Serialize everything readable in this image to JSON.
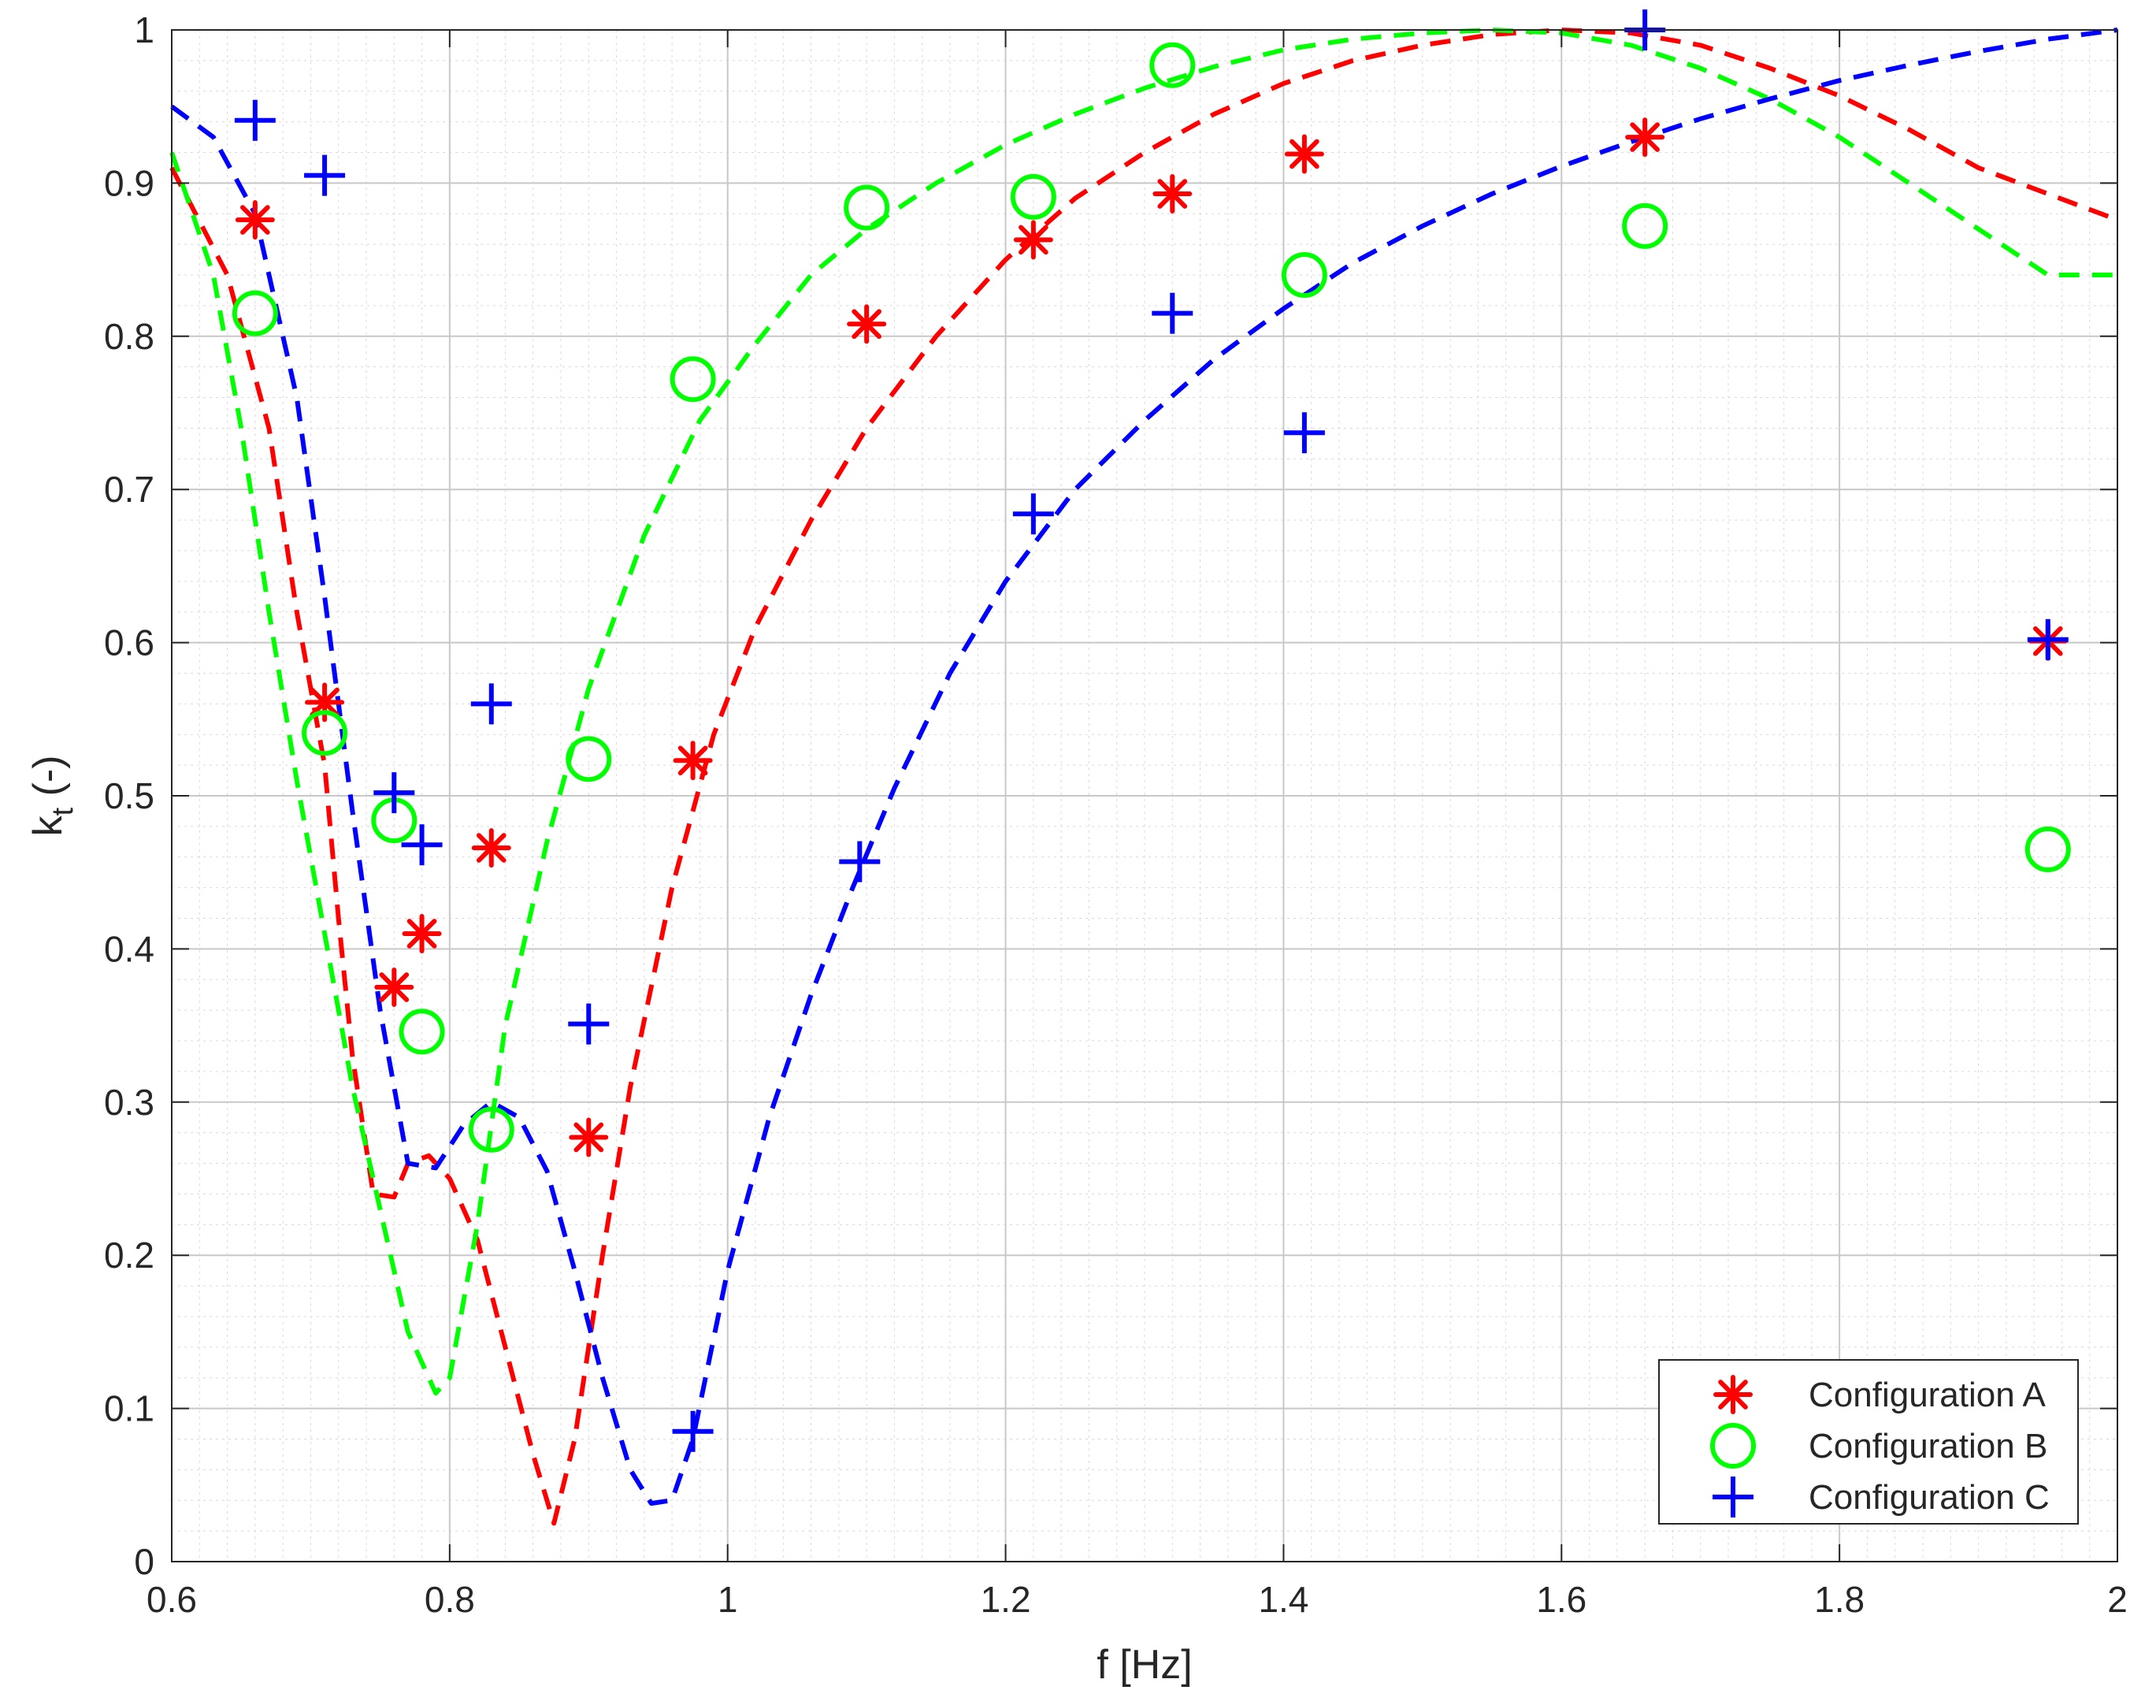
{
  "chart_data": {
    "type": "scatter",
    "title": "",
    "xlabel": "f [Hz]",
    "ylabel_main": "k",
    "ylabel_sub": "t",
    "ylabel_suffix": " (-)",
    "xlim": [
      0.6,
      2.0
    ],
    "ylim": [
      0,
      1
    ],
    "x_ticks": [
      0.6,
      0.8,
      1.0,
      1.2,
      1.4,
      1.6,
      1.8,
      2.0
    ],
    "x_tick_labels": [
      "0.6",
      "0.8",
      "1",
      "1.2",
      "1.4",
      "1.6",
      "1.8",
      "2"
    ],
    "y_ticks": [
      0,
      0.1,
      0.2,
      0.3,
      0.4,
      0.5,
      0.6,
      0.7,
      0.8,
      0.9,
      1.0
    ],
    "y_tick_labels": [
      "0",
      "0.1",
      "0.2",
      "0.3",
      "0.4",
      "0.5",
      "0.6",
      "0.7",
      "0.8",
      "0.9",
      "1"
    ],
    "grid": true,
    "minor_grid": true,
    "legend_position": "bottom-right",
    "series": [
      {
        "name": "Configuration A",
        "color": "#ff0000",
        "marker": "asterisk",
        "points": [
          [
            0.66,
            0.876
          ],
          [
            0.71,
            0.561
          ],
          [
            0.76,
            0.375
          ],
          [
            0.78,
            0.41
          ],
          [
            0.83,
            0.466
          ],
          [
            0.9,
            0.277
          ],
          [
            0.975,
            0.523
          ],
          [
            1.1,
            0.808
          ],
          [
            1.22,
            0.863
          ],
          [
            1.32,
            0.893
          ],
          [
            1.415,
            0.919
          ],
          [
            1.66,
            0.93
          ],
          [
            1.95,
            0.601
          ]
        ],
        "fit": [
          [
            0.6,
            0.91
          ],
          [
            0.64,
            0.84
          ],
          [
            0.67,
            0.74
          ],
          [
            0.69,
            0.62
          ],
          [
            0.71,
            0.52
          ],
          [
            0.72,
            0.42
          ],
          [
            0.73,
            0.33
          ],
          [
            0.745,
            0.24
          ],
          [
            0.76,
            0.238
          ],
          [
            0.77,
            0.26
          ],
          [
            0.785,
            0.265
          ],
          [
            0.8,
            0.25
          ],
          [
            0.82,
            0.21
          ],
          [
            0.84,
            0.14
          ],
          [
            0.86,
            0.07
          ],
          [
            0.875,
            0.025
          ],
          [
            0.89,
            0.08
          ],
          [
            0.91,
            0.2
          ],
          [
            0.93,
            0.31
          ],
          [
            0.96,
            0.44
          ],
          [
            0.99,
            0.54
          ],
          [
            1.02,
            0.61
          ],
          [
            1.06,
            0.68
          ],
          [
            1.1,
            0.74
          ],
          [
            1.15,
            0.8
          ],
          [
            1.2,
            0.85
          ],
          [
            1.25,
            0.89
          ],
          [
            1.3,
            0.92
          ],
          [
            1.35,
            0.945
          ],
          [
            1.4,
            0.965
          ],
          [
            1.45,
            0.98
          ],
          [
            1.5,
            0.99
          ],
          [
            1.55,
            0.997
          ],
          [
            1.6,
            1.0
          ],
          [
            1.65,
            0.998
          ],
          [
            1.7,
            0.99
          ],
          [
            1.75,
            0.975
          ],
          [
            1.8,
            0.957
          ],
          [
            1.85,
            0.935
          ],
          [
            1.9,
            0.91
          ],
          [
            1.95,
            0.893
          ],
          [
            2.0,
            0.876
          ]
        ]
      },
      {
        "name": "Configuration B",
        "color": "#00ff00",
        "marker": "circle",
        "points": [
          [
            0.66,
            0.815
          ],
          [
            0.71,
            0.541
          ],
          [
            0.76,
            0.484
          ],
          [
            0.78,
            0.346
          ],
          [
            0.83,
            0.282
          ],
          [
            0.9,
            0.524
          ],
          [
            0.975,
            0.772
          ],
          [
            1.1,
            0.884
          ],
          [
            1.22,
            0.891
          ],
          [
            1.32,
            0.977
          ],
          [
            1.415,
            0.84
          ],
          [
            1.66,
            0.872
          ],
          [
            1.95,
            0.465
          ]
        ],
        "fit": [
          [
            0.6,
            0.92
          ],
          [
            0.63,
            0.84
          ],
          [
            0.65,
            0.74
          ],
          [
            0.67,
            0.62
          ],
          [
            0.69,
            0.51
          ],
          [
            0.71,
            0.41
          ],
          [
            0.73,
            0.31
          ],
          [
            0.75,
            0.23
          ],
          [
            0.77,
            0.15
          ],
          [
            0.79,
            0.11
          ],
          [
            0.8,
            0.12
          ],
          [
            0.82,
            0.22
          ],
          [
            0.84,
            0.35
          ],
          [
            0.87,
            0.47
          ],
          [
            0.9,
            0.57
          ],
          [
            0.94,
            0.67
          ],
          [
            0.98,
            0.745
          ],
          [
            1.02,
            0.795
          ],
          [
            1.06,
            0.84
          ],
          [
            1.1,
            0.87
          ],
          [
            1.15,
            0.9
          ],
          [
            1.2,
            0.925
          ],
          [
            1.25,
            0.945
          ],
          [
            1.3,
            0.962
          ],
          [
            1.35,
            0.976
          ],
          [
            1.4,
            0.987
          ],
          [
            1.45,
            0.994
          ],
          [
            1.5,
            0.998
          ],
          [
            1.55,
            1.0
          ],
          [
            1.6,
            0.998
          ],
          [
            1.65,
            0.99
          ],
          [
            1.7,
            0.975
          ],
          [
            1.75,
            0.955
          ],
          [
            1.8,
            0.93
          ],
          [
            1.85,
            0.9
          ],
          [
            1.9,
            0.87
          ],
          [
            1.95,
            0.84
          ],
          [
            2.0,
            0.84
          ]
        ]
      },
      {
        "name": "Configuration C",
        "color": "#0000ff",
        "marker": "plus",
        "points": [
          [
            0.66,
            0.941
          ],
          [
            0.71,
            0.905
          ],
          [
            0.76,
            0.502
          ],
          [
            0.78,
            0.468
          ],
          [
            0.83,
            0.56
          ],
          [
            0.9,
            0.351
          ],
          [
            0.975,
            0.085
          ],
          [
            1.095,
            0.457
          ],
          [
            1.22,
            0.684
          ],
          [
            1.32,
            0.815
          ],
          [
            1.415,
            0.737
          ],
          [
            1.66,
            1.0
          ],
          [
            1.95,
            0.602
          ]
        ],
        "fit": [
          [
            0.6,
            0.95
          ],
          [
            0.63,
            0.93
          ],
          [
            0.66,
            0.88
          ],
          [
            0.69,
            0.76
          ],
          [
            0.71,
            0.63
          ],
          [
            0.73,
            0.49
          ],
          [
            0.75,
            0.36
          ],
          [
            0.77,
            0.26
          ],
          [
            0.79,
            0.257
          ],
          [
            0.81,
            0.285
          ],
          [
            0.83,
            0.3
          ],
          [
            0.85,
            0.29
          ],
          [
            0.87,
            0.255
          ],
          [
            0.89,
            0.19
          ],
          [
            0.91,
            0.12
          ],
          [
            0.93,
            0.06
          ],
          [
            0.945,
            0.038
          ],
          [
            0.96,
            0.04
          ],
          [
            0.975,
            0.08
          ],
          [
            1.0,
            0.19
          ],
          [
            1.03,
            0.29
          ],
          [
            1.06,
            0.37
          ],
          [
            1.09,
            0.44
          ],
          [
            1.12,
            0.505
          ],
          [
            1.16,
            0.58
          ],
          [
            1.2,
            0.64
          ],
          [
            1.25,
            0.7
          ],
          [
            1.3,
            0.745
          ],
          [
            1.35,
            0.785
          ],
          [
            1.4,
            0.818
          ],
          [
            1.45,
            0.848
          ],
          [
            1.5,
            0.872
          ],
          [
            1.55,
            0.893
          ],
          [
            1.6,
            0.911
          ],
          [
            1.65,
            0.927
          ],
          [
            1.7,
            0.942
          ],
          [
            1.75,
            0.955
          ],
          [
            1.8,
            0.967
          ],
          [
            1.85,
            0.977
          ],
          [
            1.9,
            0.986
          ],
          [
            1.95,
            0.994
          ],
          [
            2.0,
            1.0
          ]
        ]
      }
    ]
  }
}
